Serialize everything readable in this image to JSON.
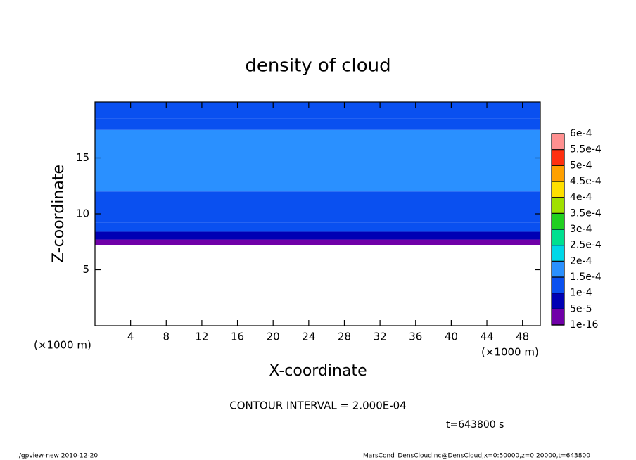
{
  "chart_data": {
    "type": "contour",
    "title": "density of cloud",
    "x_label": "X-coordinate",
    "y_label": "Z-coordinate",
    "x_unit": "(×1000 m)",
    "x_unit_right": "(×1000 m)",
    "xlim": [
      0,
      50
    ],
    "xticks": [
      4,
      8,
      12,
      16,
      20,
      24,
      28,
      32,
      36,
      40,
      44,
      48
    ],
    "ylim": [
      0,
      20
    ],
    "yticks": [
      5,
      10,
      15
    ],
    "z_edges": [
      7.2,
      7.7,
      8.4,
      9.2,
      12,
      17.5,
      18.5,
      20
    ],
    "values": [
      3e-05,
      7e-05,
      0.00011,
      0.00013,
      0.00016,
      0.000135,
      0.00012
    ],
    "levels": [
      {
        "value": 1e-16,
        "label": "1e-16"
      },
      {
        "value": 5e-05,
        "label": "5e-5"
      },
      {
        "value": 0.0001,
        "label": "1e-4"
      },
      {
        "value": 0.00015,
        "label": "1.5e-4"
      },
      {
        "value": 0.0002,
        "label": "2e-4"
      },
      {
        "value": 0.00025,
        "label": "2.5e-4"
      },
      {
        "value": 0.0003,
        "label": "3e-4"
      },
      {
        "value": 0.00035,
        "label": "3.5e-4"
      },
      {
        "value": 0.0004,
        "label": "4e-4"
      },
      {
        "value": 0.00045,
        "label": "4.5e-4"
      },
      {
        "value": 0.0005,
        "label": "5e-4"
      },
      {
        "value": 0.00055,
        "label": "5.5e-4"
      },
      {
        "value": 0.0006,
        "label": "6e-4"
      }
    ],
    "level_colors": [
      "#7000a8",
      "#0000b4",
      "#0a50f0",
      "#2a90ff",
      "#00d8e8",
      "#00e090",
      "#20d020",
      "#a0e000",
      "#ffe000",
      "#ffa000",
      "#ff3010",
      "#ff9090"
    ],
    "contour_interval": "CONTOUR INTERVAL = 2.000E-04",
    "time": "t=643800 s",
    "footer_left": "./gpview-new  2010-12-20",
    "footer_right": "MarsCond_DensCloud.nc@DensCloud,x=0:50000,z=0:20000,t=643800"
  }
}
